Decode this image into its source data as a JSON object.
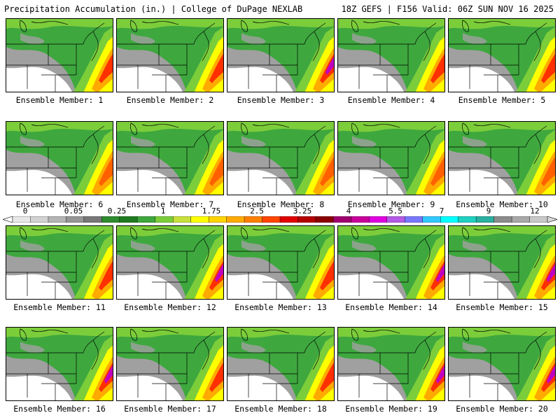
{
  "header": {
    "left": "Precipitation Accumulation (in.) | College of DuPage NEXLAB",
    "right": "18Z GEFS | F156 Valid: 06Z SUN NOV 16 2025"
  },
  "members": [
    {
      "label": "Ensemble Member: 1"
    },
    {
      "label": "Ensemble Member: 2"
    },
    {
      "label": "Ensemble Member: 3"
    },
    {
      "label": "Ensemble Member: 4"
    },
    {
      "label": "Ensemble Member: 5"
    },
    {
      "label": "Ensemble Member: 6"
    },
    {
      "label": "Ensemble Member: 7"
    },
    {
      "label": "Ensemble Member: 8"
    },
    {
      "label": "Ensemble Member: 9"
    },
    {
      "label": "Ensemble Member: 10"
    },
    {
      "label": "Ensemble Member: 11"
    },
    {
      "label": "Ensemble Member: 12"
    },
    {
      "label": "Ensemble Member: 13"
    },
    {
      "label": "Ensemble Member: 14"
    },
    {
      "label": "Ensemble Member: 15"
    },
    {
      "label": "Ensemble Member: 16"
    },
    {
      "label": "Ensemble Member: 17"
    },
    {
      "label": "Ensemble Member: 18"
    },
    {
      "label": "Ensemble Member: 19"
    },
    {
      "label": "Ensemble Member: 20"
    }
  ],
  "colorbar": {
    "labels": [
      "0",
      "0.05",
      "0.25",
      "1",
      "1.75",
      "2.5",
      "3.25",
      "4",
      "5.5",
      "7",
      "9",
      "12"
    ],
    "colors": [
      "#e8e8e8",
      "#d2d2d2",
      "#b4b4b4",
      "#969696",
      "#787878",
      "#2e8b2e",
      "#1f7a1f",
      "#3ea83e",
      "#7ccd3a",
      "#c8e03c",
      "#ffff00",
      "#ffd400",
      "#ffaa00",
      "#ff7f00",
      "#ff4500",
      "#e00000",
      "#b40000",
      "#8b0000",
      "#a0006e",
      "#c8009a",
      "#e000e0",
      "#b45ae6",
      "#7878ff",
      "#32c8ff",
      "#00ffff",
      "#20d0c0",
      "#2ab0a0",
      "#8c8c8c",
      "#a8a8a8",
      "#c8c8c8"
    ]
  },
  "map_colors": {
    "green_dark": "#1f7a1f",
    "green": "#3ea83e",
    "green_light": "#7ccd3a",
    "yellow": "#ffff00",
    "orange": "#ffaa00",
    "red": "#ff3000",
    "magenta": "#c000c0",
    "gray": "#a0a0a0",
    "white": "#ffffff"
  }
}
